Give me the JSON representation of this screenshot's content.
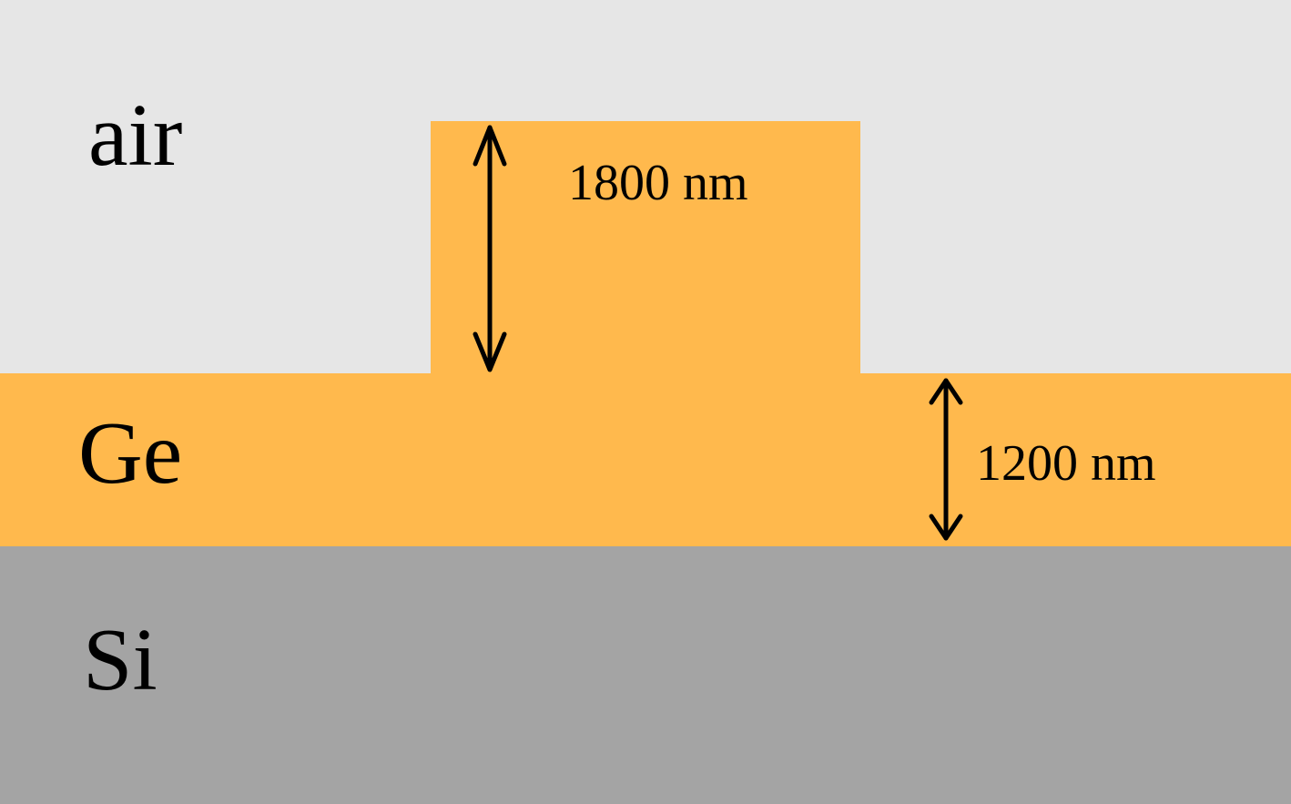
{
  "layers": {
    "air": {
      "label": "air",
      "color": "#e6e6e6"
    },
    "ge": {
      "label": "Ge",
      "color": "#ffb94d"
    },
    "si": {
      "label": "Si",
      "color": "#a4a4a4"
    }
  },
  "dimensions": {
    "ridge_height": {
      "label": "1800 nm"
    },
    "slab_thickness": {
      "label": "1200 nm"
    }
  },
  "arrow_color": "#000000"
}
